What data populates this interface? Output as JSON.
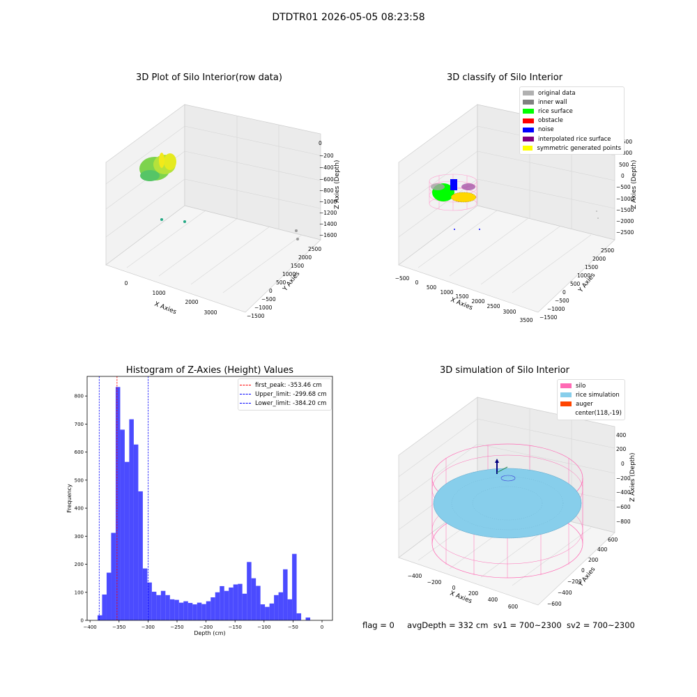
{
  "suptitle": "DTDTR01 2026-05-05 08:23:58",
  "status": {
    "flag": "flag = 0",
    "avg_depth": "avgDepth = 332 cm",
    "sv1": "sv1 = 700~2300",
    "sv2": "sv2 = 700~2300"
  },
  "colors": {
    "original_data": "#b0b0b0",
    "inner_wall": "#808080",
    "rice_surface": "#00ff00",
    "obstacle": "#ff0000",
    "noise": "#0000ff",
    "interpolated": "#800080",
    "symmetric": "#ffff00",
    "silo": "#ff69b4",
    "rice_sim": "#87ceeb",
    "auger": "#ff4500",
    "hist_bar": "#4b4bff"
  },
  "plot1": {
    "title": "3D Plot of Silo Interior(row data)",
    "xlabel": "X Axies",
    "ylabel": "Y Axies",
    "zlabel": "Z Axies (Depth)",
    "x_ticks": [
      "0",
      "1000",
      "2000",
      "3000"
    ],
    "y_ticks": [
      "−1500",
      "−1000",
      "−500",
      "0",
      "500",
      "1000",
      "1500",
      "2000",
      "2500"
    ],
    "z_ticks": [
      "0",
      "−200",
      "−400",
      "−600",
      "−800",
      "−1000",
      "−1200",
      "−1400",
      "−1600"
    ]
  },
  "plot2": {
    "title": "3D classify of Silo Interior",
    "xlabel": "X Axies",
    "ylabel": "Y Axies",
    "zlabel": "Z Axies (Depth)",
    "x_ticks": [
      "−500",
      "0",
      "500",
      "1000",
      "1500",
      "2000",
      "2500",
      "3000",
      "3500"
    ],
    "y_ticks": [
      "−1500",
      "−1000",
      "−500",
      "0",
      "500",
      "1000",
      "1500",
      "2000",
      "2500"
    ],
    "z_ticks": [
      "1500",
      "1000",
      "500",
      "0",
      "−500",
      "−1000",
      "−1500",
      "−2000",
      "−2500"
    ],
    "legend": [
      {
        "label": "original data",
        "color": "#b0b0b0"
      },
      {
        "label": "inner wall",
        "color": "#808080"
      },
      {
        "label": "rice surface",
        "color": "#00ff00"
      },
      {
        "label": "obstacle",
        "color": "#ff0000"
      },
      {
        "label": "noise",
        "color": "#0000ff"
      },
      {
        "label": "interpolated rice surface",
        "color": "#800080"
      },
      {
        "label": "symmetric generated points",
        "color": "#ffff00"
      }
    ]
  },
  "plot4": {
    "title": "3D simulation of Silo Interior",
    "xlabel": "X Axies",
    "ylabel": "Y Axies",
    "zlabel": "Z Axies (Depth)",
    "x_ticks": [
      "−400",
      "−200",
      "0",
      "200",
      "400",
      "600"
    ],
    "y_ticks": [
      "−600",
      "−400",
      "−200",
      "0",
      "200",
      "400",
      "600"
    ],
    "z_ticks": [
      "400",
      "200",
      "0",
      "−200",
      "−400",
      "−600",
      "−800"
    ],
    "legend": [
      {
        "label": "silo",
        "color": "#ff69b4"
      },
      {
        "label": "rice simulation",
        "color": "#87ceeb"
      },
      {
        "label": "auger",
        "color": "#ff4500"
      },
      {
        "label": "center(118,-19)",
        "color": ""
      }
    ]
  },
  "chart_data": {
    "type": "bar",
    "title": "Histogram of Z-Axies (Height) Values",
    "xlabel": "Depth (cm)",
    "ylabel": "Frequency",
    "xlim": [
      -405,
      18
    ],
    "ylim": [
      0,
      870
    ],
    "x_ticks": [
      -400,
      -350,
      -300,
      -250,
      -200,
      -150,
      -100,
      -50,
      0
    ],
    "y_ticks": [
      0,
      100,
      200,
      300,
      400,
      500,
      600,
      700,
      800
    ],
    "bin_width": 7.8,
    "bins_start": [
      -387,
      -379.2,
      -371.4,
      -363.6,
      -355.8,
      -348,
      -340.2,
      -332.4,
      -324.6,
      -316.8,
      -309,
      -301.2,
      -293.4,
      -285.6,
      -277.8,
      -270,
      -262.2,
      -254.4,
      -246.6,
      -238.8,
      -231,
      -223.2,
      -215.4,
      -207.6,
      -199.8,
      -192,
      -184.2,
      -176.4,
      -168.6,
      -160.8,
      -153,
      -145.2,
      -137.4,
      -129.6,
      -121.8,
      -114,
      -106.2,
      -98.4,
      -90.6,
      -82.8,
      -75,
      -67.2,
      -59.4,
      -51.6,
      -43.8,
      -36,
      -28.2,
      -20.4,
      -12.6,
      -4.8
    ],
    "values": [
      18,
      92,
      170,
      312,
      832,
      680,
      565,
      717,
      627,
      460,
      185,
      135,
      102,
      90,
      105,
      90,
      75,
      73,
      63,
      68,
      62,
      57,
      63,
      58,
      68,
      82,
      100,
      122,
      105,
      117,
      128,
      130,
      95,
      208,
      150,
      123,
      57,
      48,
      60,
      90,
      100,
      182,
      75,
      237,
      25,
      0,
      10,
      0,
      0,
      0
    ],
    "vlines": [
      {
        "label": "first_peak: -353.46 cm",
        "x": -353.46,
        "color": "#ff0000"
      },
      {
        "label": "Upper_limit: -299.68 cm",
        "x": -299.68,
        "color": "#0000ff"
      },
      {
        "label": "Lower_limit: -384.20 cm",
        "x": -384.2,
        "color": "#0000ff"
      }
    ],
    "legend_position": "upper right"
  }
}
